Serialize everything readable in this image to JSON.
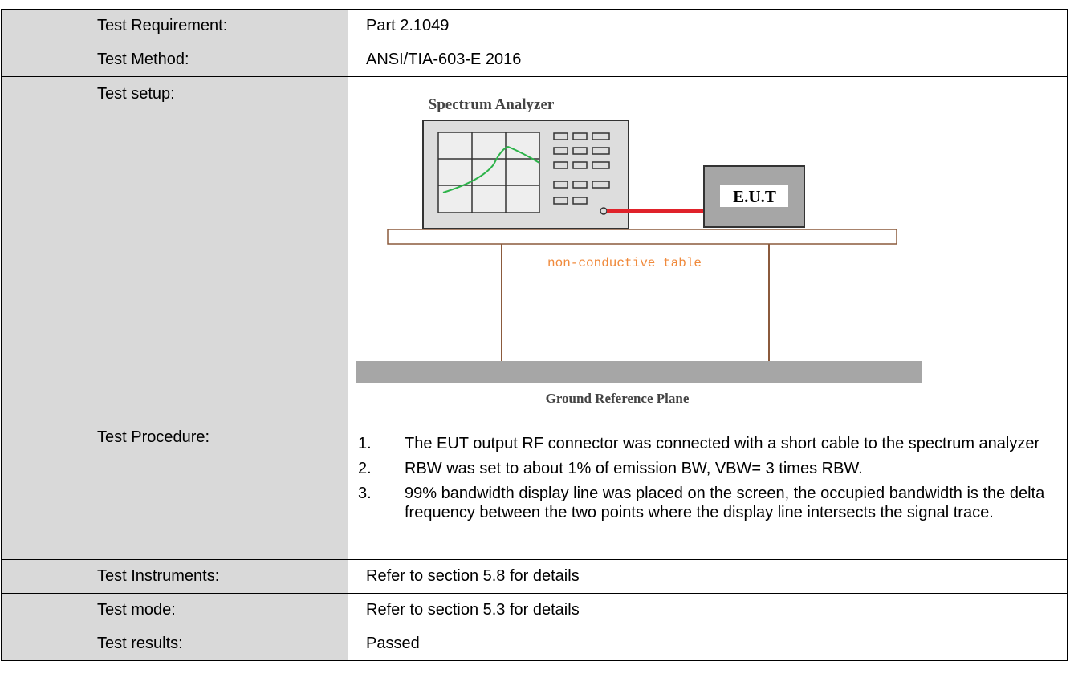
{
  "table": {
    "rows": [
      {
        "label": "Test Requirement:",
        "value": "Part 2.1049"
      },
      {
        "label": "Test Method:",
        "value": "ANSI/TIA-603-E 2016"
      },
      {
        "label": "Test setup:",
        "diagram": {
          "analyzer": "Spectrum Analyzer",
          "eut": "E.U.T",
          "table": "non-conductive table",
          "ground": "Ground Reference Plane"
        }
      },
      {
        "label": "Test Procedure:",
        "steps": [
          {
            "marker": "1.",
            "text": "The EUT output RF connector was connected with a short cable to the spectrum analyzer"
          },
          {
            "marker": "2.",
            "text": "RBW was set to about 1% of emission BW, VBW= 3 times RBW."
          },
          {
            "marker": "3.",
            "text": "99% bandwidth display line was placed on the screen, the occupied bandwidth is the delta frequency between the two points where the display line intersects the signal trace."
          }
        ]
      },
      {
        "label": "Test Instruments:",
        "value": "Refer to section 5.8 for details"
      },
      {
        "label": "Test mode:",
        "value": "Refer to section 5.3 for details"
      },
      {
        "label": "Test results:",
        "value": "Passed"
      }
    ]
  }
}
